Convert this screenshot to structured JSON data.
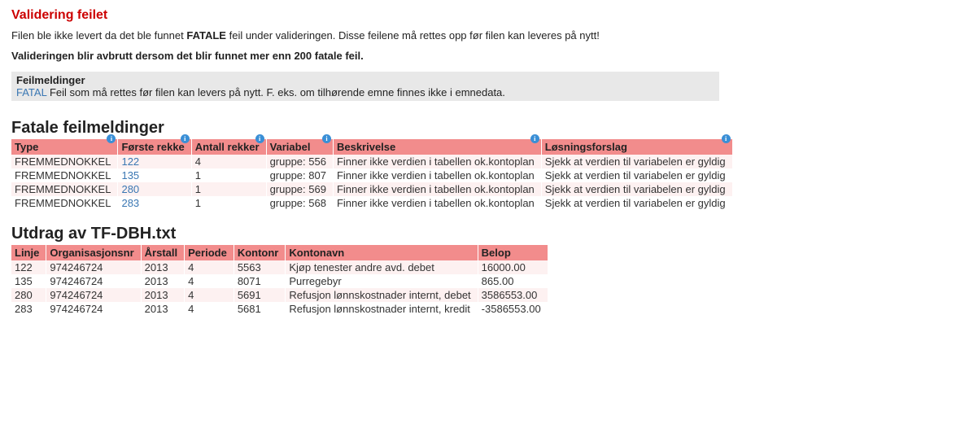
{
  "header": {
    "title": "Validering feilet",
    "intro_before": "Filen ble ikke levert da det ble funnet ",
    "intro_strong": "FATALE",
    "intro_after": " feil under valideringen. Disse feilene må rettes opp før filen kan leveres på nytt!",
    "abort_note": "Valideringen blir avbrutt dersom det blir funnet mer enn 200 fatale feil."
  },
  "msgbox": {
    "title": "Feilmeldinger",
    "tag": "FATAL",
    "body": " Feil som må rettes før filen kan levers på nytt. F. eks. om tilhørende emne finnes ikke i emnedata."
  },
  "fatal": {
    "title": "Fatale feilmeldinger",
    "columns": {
      "type": "Type",
      "first_row": "Første rekke",
      "row_count": "Antall rekker",
      "variable": "Variabel",
      "description": "Beskrivelse",
      "solution": "Løsningsforslag"
    },
    "rows": [
      {
        "type": "FREMMEDNOKKEL",
        "first": "122",
        "count": "4",
        "var": "gruppe: 556",
        "desc": "Finner ikke verdien i tabellen ok.kontoplan",
        "sol": "Sjekk at verdien til variabelen er gyldig"
      },
      {
        "type": "FREMMEDNOKKEL",
        "first": "135",
        "count": "1",
        "var": "gruppe: 807",
        "desc": "Finner ikke verdien i tabellen ok.kontoplan",
        "sol": "Sjekk at verdien til variabelen er gyldig"
      },
      {
        "type": "FREMMEDNOKKEL",
        "first": "280",
        "count": "1",
        "var": "gruppe: 569",
        "desc": "Finner ikke verdien i tabellen ok.kontoplan",
        "sol": "Sjekk at verdien til variabelen er gyldig"
      },
      {
        "type": "FREMMEDNOKKEL",
        "first": "283",
        "count": "1",
        "var": "gruppe: 568",
        "desc": "Finner ikke verdien i tabellen ok.kontoplan",
        "sol": "Sjekk at verdien til variabelen er gyldig"
      }
    ]
  },
  "excerpt": {
    "title": "Utdrag av TF-DBH.txt",
    "columns": {
      "line": "Linje",
      "orgnr": "Organisasjonsnr",
      "year": "Årstall",
      "period": "Periode",
      "accountnr": "Kontonr",
      "accountname": "Kontonavn",
      "amount": "Belop"
    },
    "rows": [
      {
        "line": "122",
        "org": "974246724",
        "year": "2013",
        "period": "4",
        "accnr": "5563",
        "accname": "Kjøp tenester andre avd. debet",
        "amount": "16000.00"
      },
      {
        "line": "135",
        "org": "974246724",
        "year": "2013",
        "period": "4",
        "accnr": "8071",
        "accname": "Purregebyr",
        "amount": "865.00"
      },
      {
        "line": "280",
        "org": "974246724",
        "year": "2013",
        "period": "4",
        "accnr": "5691",
        "accname": "Refusjon lønnskostnader internt, debet",
        "amount": "3586553.00"
      },
      {
        "line": "283",
        "org": "974246724",
        "year": "2013",
        "period": "4",
        "accnr": "5681",
        "accname": "Refusjon lønnskostnader internt, kredit",
        "amount": "-3586553.00"
      }
    ]
  },
  "colors": {
    "error_red": "#cc0000",
    "header_pink": "#f28c8c",
    "row_alt": "#fdf1f1",
    "link_blue": "#3a77b3",
    "info_badge": "#3a8fd6",
    "msgbox_bg": "#e8e8e8"
  }
}
